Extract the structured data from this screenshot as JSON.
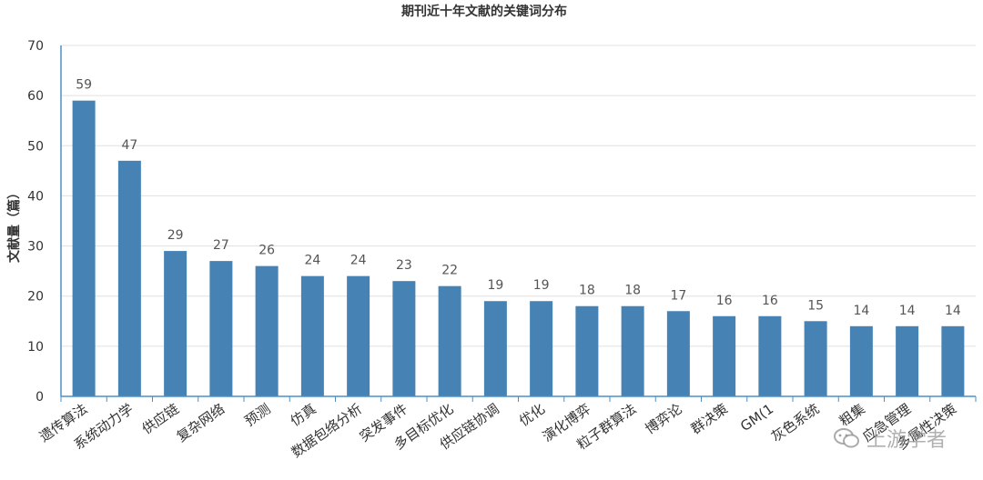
{
  "chart_data": {
    "type": "bar",
    "title": "期刊近十年文献的关键词分布",
    "xlabel": "",
    "ylabel": "文献量（篇）",
    "ylim": [
      0,
      70
    ],
    "yticks": [
      0,
      10,
      20,
      30,
      40,
      50,
      60,
      70
    ],
    "grid": true,
    "color": "#4682b4",
    "categories": [
      "遗传算法",
      "系统动力学",
      "供应链",
      "复杂网络",
      "预测",
      "仿真",
      "数据包络分析",
      "突发事件",
      "多目标优化",
      "供应链协调",
      "优化",
      "演化博弈",
      "粒子群算法",
      "博弈论",
      "群决策",
      "GM(1",
      "灰色系统",
      "粗集",
      "应急管理",
      "多属性决策"
    ],
    "values": [
      59,
      47,
      29,
      27,
      26,
      24,
      24,
      23,
      22,
      19,
      19,
      18,
      18,
      17,
      16,
      16,
      15,
      14,
      14,
      14
    ]
  },
  "watermark": {
    "text": "上游学者",
    "icon": "wechat-icon"
  }
}
